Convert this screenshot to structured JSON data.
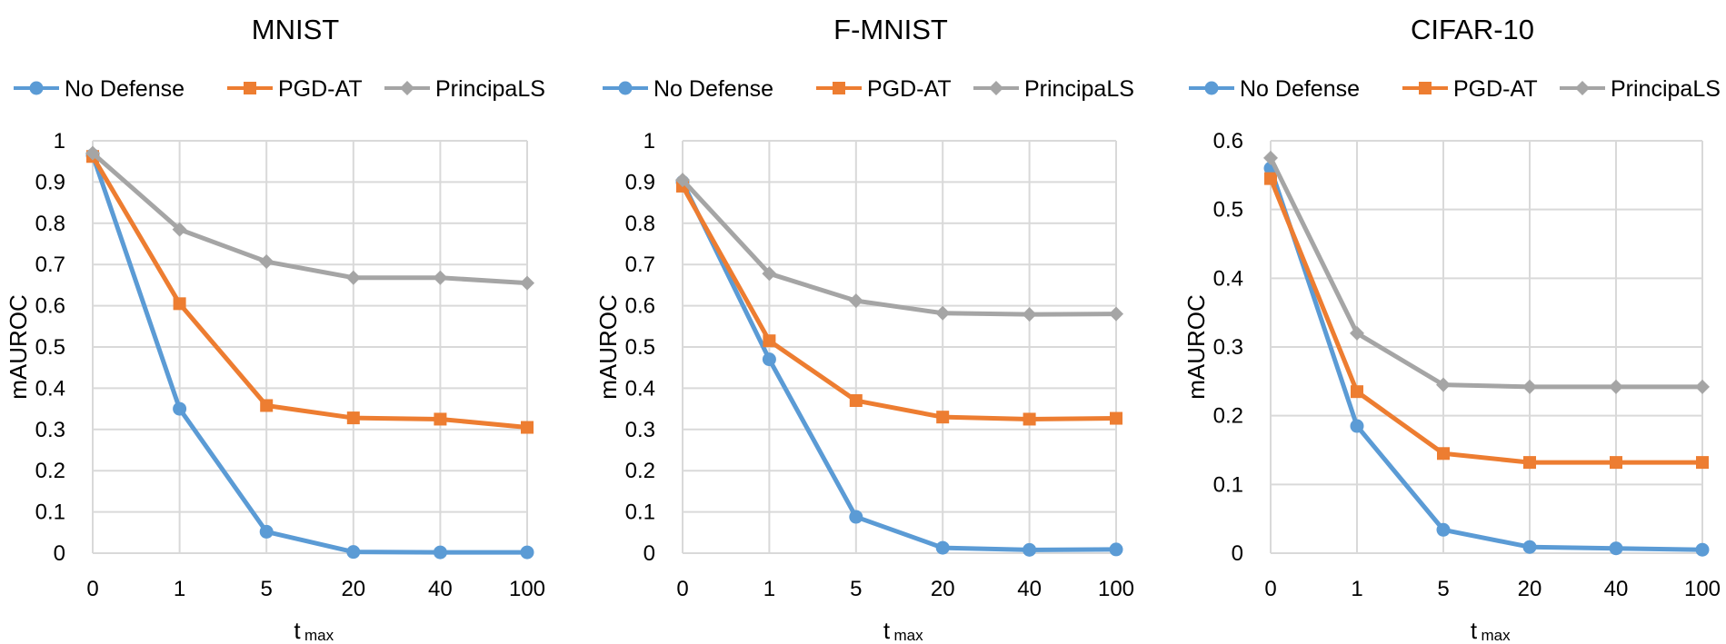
{
  "chart_data": [
    {
      "type": "line",
      "title": "MNIST",
      "xlabel": "t",
      "xlabel_subscript": "max",
      "ylabel": "mAUROC",
      "categories": [
        "0",
        "1",
        "5",
        "20",
        "40",
        "100"
      ],
      "ylim": [
        0,
        1
      ],
      "yticks": [
        "0",
        "0.1",
        "0.2",
        "0.3",
        "0.4",
        "0.5",
        "0.6",
        "0.7",
        "0.8",
        "0.9",
        "1"
      ],
      "grid": true,
      "legend": "top",
      "series": [
        {
          "name": "No Defense",
          "color": "#5B9BD5",
          "marker": "circle",
          "values": [
            0.965,
            0.35,
            0.052,
            0.003,
            0.002,
            0.002
          ]
        },
        {
          "name": "PGD-AT",
          "color": "#ED7D31",
          "marker": "square",
          "values": [
            0.962,
            0.605,
            0.358,
            0.328,
            0.325,
            0.305
          ]
        },
        {
          "name": "PrincipaLS",
          "color": "#A5A5A5",
          "marker": "diamond",
          "values": [
            0.97,
            0.785,
            0.707,
            0.668,
            0.668,
            0.655
          ]
        }
      ]
    },
    {
      "type": "line",
      "title": "F-MNIST",
      "xlabel": "t",
      "xlabel_subscript": "max",
      "ylabel": "mAUROC",
      "categories": [
        "0",
        "1",
        "5",
        "20",
        "40",
        "100"
      ],
      "ylim": [
        0,
        1
      ],
      "yticks": [
        "0",
        "0.1",
        "0.2",
        "0.3",
        "0.4",
        "0.5",
        "0.6",
        "0.7",
        "0.8",
        "0.9",
        "1"
      ],
      "grid": true,
      "legend": "top",
      "series": [
        {
          "name": "No Defense",
          "color": "#5B9BD5",
          "marker": "circle",
          "values": [
            0.9,
            0.47,
            0.088,
            0.013,
            0.008,
            0.009
          ]
        },
        {
          "name": "PGD-AT",
          "color": "#ED7D31",
          "marker": "square",
          "values": [
            0.89,
            0.515,
            0.37,
            0.33,
            0.325,
            0.327
          ]
        },
        {
          "name": "PrincipaLS",
          "color": "#A5A5A5",
          "marker": "diamond",
          "values": [
            0.905,
            0.678,
            0.612,
            0.582,
            0.579,
            0.58
          ]
        }
      ]
    },
    {
      "type": "line",
      "title": "CIFAR-10",
      "xlabel": "t",
      "xlabel_subscript": "max",
      "ylabel": "mAUROC",
      "categories": [
        "0",
        "1",
        "5",
        "20",
        "40",
        "100"
      ],
      "ylim": [
        0,
        0.6
      ],
      "yticks": [
        "0",
        "0.1",
        "0.2",
        "0.3",
        "0.4",
        "0.5",
        "0.6"
      ],
      "grid": true,
      "legend": "top",
      "series": [
        {
          "name": "No Defense",
          "color": "#5B9BD5",
          "marker": "circle",
          "values": [
            0.56,
            0.185,
            0.034,
            0.009,
            0.007,
            0.005
          ]
        },
        {
          "name": "PGD-AT",
          "color": "#ED7D31",
          "marker": "square",
          "values": [
            0.545,
            0.235,
            0.145,
            0.132,
            0.132,
            0.132
          ]
        },
        {
          "name": "PrincipaLS",
          "color": "#A5A5A5",
          "marker": "diamond",
          "values": [
            0.575,
            0.32,
            0.245,
            0.242,
            0.242,
            0.242
          ]
        }
      ]
    }
  ]
}
